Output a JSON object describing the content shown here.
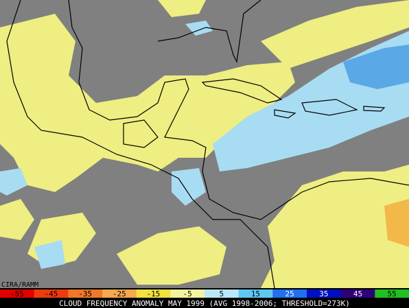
{
  "map": {
    "credit": "CIRA/RAMM",
    "colorbar": {
      "labels": [
        -55,
        -45,
        -35,
        -25,
        -15,
        -5,
        5,
        15,
        25,
        35,
        45,
        55
      ]
    },
    "caption": "CLOUD FREQUENCY ANOMALY MAY 1999 (AVG 1998-2006; THRESHOLD=273K)"
  }
}
